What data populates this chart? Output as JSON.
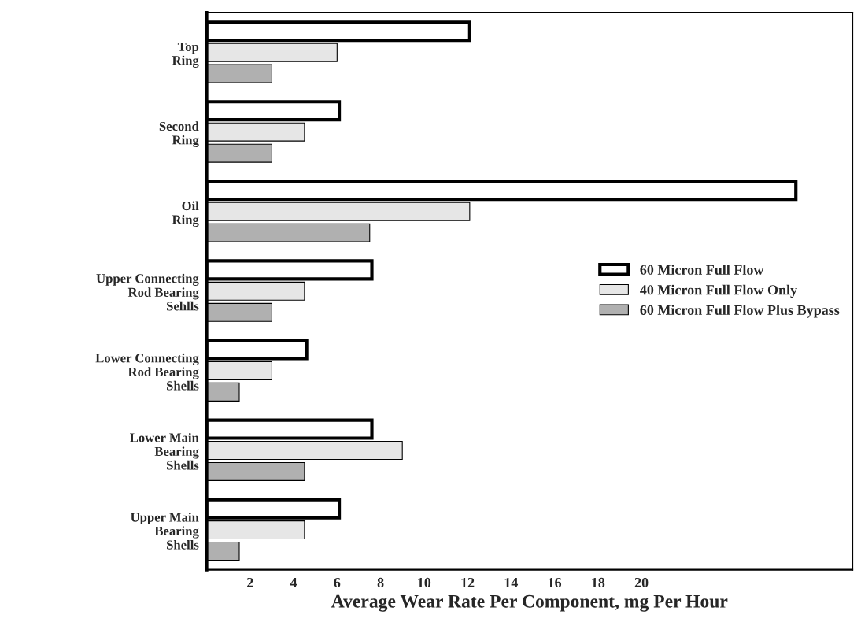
{
  "chart_data": {
    "type": "bar",
    "orientation": "horizontal",
    "xlabel": "Average Wear Rate Per Component, mg Per Hour",
    "categories": [
      "Top\nRing",
      "Second\nRing",
      "Oil\nRing",
      "Upper Connecting\nRod Bearing\nSehlls",
      "Lower Connecting\nRod Bearing\nShells",
      "Lower Main\nBearing\nShells",
      "Upper Main\nBearing\nShells"
    ],
    "series": [
      {
        "name": "60 Micron Full Flow",
        "color": "#ffffff",
        "values": [
          12.1,
          6.1,
          27.1,
          7.6,
          4.6,
          7.6,
          6.1
        ]
      },
      {
        "name": "40 Micron Full Flow Only",
        "color": "#e6e6e6",
        "values": [
          6.0,
          4.5,
          12.1,
          4.5,
          3.0,
          9.0,
          4.5
        ]
      },
      {
        "name": "60 Micron Full Flow Plus Bypass",
        "color": "#b0b0b0",
        "values": [
          3.0,
          3.0,
          7.5,
          3.0,
          1.5,
          4.5,
          1.5
        ]
      }
    ],
    "xlim": [
      0,
      29.7
    ],
    "xticks": [
      2,
      4,
      6,
      8,
      10,
      12,
      14,
      16,
      18,
      20
    ],
    "grid": false,
    "legend": "right"
  }
}
